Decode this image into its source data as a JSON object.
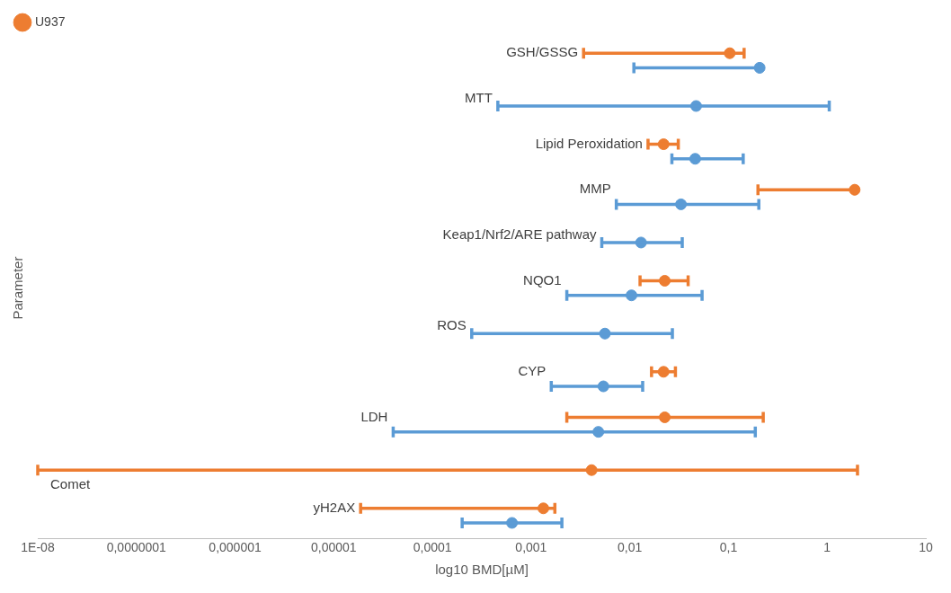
{
  "chart_data": {
    "type": "scatter",
    "orientation": "horizontal",
    "xlabel": "log10 BMD[µM]",
    "ylabel": "Parameter",
    "log": "x",
    "grid": false,
    "legend": "top left",
    "marker": "circle",
    "tick_labels": "x",
    "categories": [
      "GSH/GSSG",
      "MTT",
      "Lipid Peroxidation",
      "MMP",
      "Keap1/Nrf2/ARE pathway",
      "NQO1",
      "ROS",
      "CYP",
      "LDH",
      "Comet",
      "yH2AX"
    ],
    "xlim": [
      1e-08,
      10
    ],
    "xticks": [
      {
        "value": 1e-08,
        "label": "1E-08"
      },
      {
        "value": 1e-07,
        "label": "0,0000001"
      },
      {
        "value": 1e-06,
        "label": "0,000001"
      },
      {
        "value": 1e-05,
        "label": "0,00001"
      },
      {
        "value": 0.0001,
        "label": "0,0001"
      },
      {
        "value": 0.001,
        "label": "0,001"
      },
      {
        "value": 0.01,
        "label": "0,01"
      },
      {
        "value": 0.1,
        "label": "0,1"
      },
      1,
      10
    ],
    "series": [
      {
        "color": "#5b9bd5",
        "values": [
          0.207,
          0.047,
          0.046,
          0.033,
          0.013,
          0.0104,
          0.0056,
          0.0054,
          0.0048,
          null,
          0.00064
        ],
        "errors": [
          [
            0.011,
            0.207
          ],
          [
            0.00046,
            1.05
          ],
          [
            0.0267,
            0.141
          ],
          [
            0.0073,
            0.203
          ],
          [
            0.0052,
            0.034
          ],
          [
            0.0023,
            0.054
          ],
          [
            0.00025,
            0.027
          ],
          [
            0.0016,
            0.0135
          ],
          [
            4e-05,
            0.187
          ],
          null,
          [
            0.0002,
            0.00205
          ]
        ]
      },
      {
        "name": "U937",
        "color": "#ed7d31",
        "values": [
          0.103,
          null,
          0.022,
          1.9,
          null,
          0.0226,
          null,
          0.022,
          0.0226,
          0.0041,
          0.00133
        ],
        "errors": [
          [
            0.0034,
            0.144
          ],
          null,
          [
            0.0153,
            0.031
          ],
          [
            0.199,
            1.9
          ],
          null,
          [
            0.0127,
            0.039
          ],
          null,
          [
            0.0166,
            0.029
          ],
          [
            0.0023,
            0.225
          ],
          [
            1e-08,
            2.03
          ],
          [
            1.87e-05,
            0.00174
          ]
        ]
      }
    ]
  }
}
